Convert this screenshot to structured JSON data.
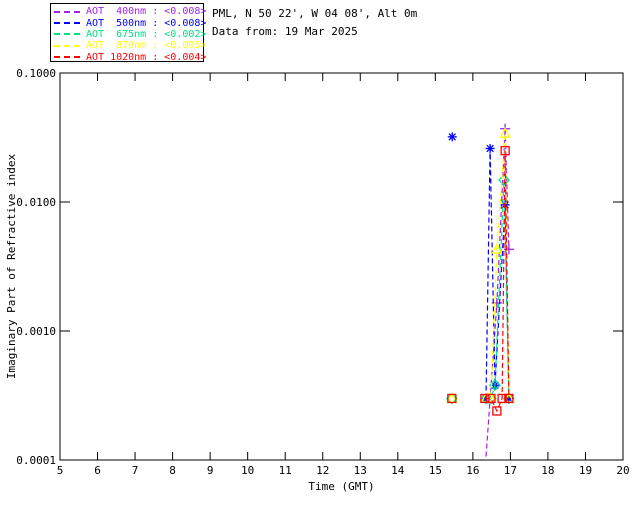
{
  "header": {
    "line1": "PML, N 50 22', W 04 08', Alt 0m",
    "line2": "Data from: 19 Mar 2025"
  },
  "legend": {
    "items": [
      {
        "label": "AOT  400nm : <0.008>",
        "color": "#A020F0"
      },
      {
        "label": "AOT  500nm : <0.008>",
        "color": "#0000FF"
      },
      {
        "label": "AOT  675nm : <0.002>",
        "color": "#00E080"
      },
      {
        "label": "AOT  870nm : <0.005>",
        "color": "#FFFF00"
      },
      {
        "label": "AOT 1020nm : <0.004>",
        "color": "#FF0000"
      }
    ]
  },
  "chart_data": {
    "type": "line",
    "title": "",
    "xlabel": "Time (GMT)",
    "ylabel": "Imaginary Part of Refractive index",
    "xlim": [
      5,
      20
    ],
    "ylim": [
      0.0001,
      0.1
    ],
    "yscale": "log",
    "grid": false,
    "xticks": {
      "values": [
        5,
        6,
        7,
        8,
        9,
        10,
        11,
        12,
        13,
        14,
        15,
        16,
        17,
        18,
        19,
        20
      ],
      "labels": [
        "5",
        "6",
        "7",
        "8",
        "9",
        "10",
        "11",
        "12",
        "13",
        "14",
        "15",
        "16",
        "17",
        "18",
        "19",
        "20"
      ]
    },
    "yticks": {
      "values": [
        0.1,
        0.01,
        0.001,
        0.0001
      ],
      "labels": [
        "0.1000",
        "0.0100",
        "0.0010",
        "0.0001"
      ]
    },
    "series": [
      {
        "name": "AOT 400nm",
        "color": "#A020F0",
        "marker": "plus",
        "line": [
          [
            16.32,
            8e-05
          ],
          [
            16.64,
            0.00165
          ],
          [
            16.86,
            0.037
          ],
          [
            16.96,
            0.0043
          ]
        ],
        "markers": [
          [
            16.64,
            0.00165
          ],
          [
            16.86,
            0.037
          ],
          [
            16.96,
            0.0043
          ]
        ]
      },
      {
        "name": "AOT 500nm",
        "color": "#0000FF",
        "marker": "asterisk",
        "line": [
          [
            16.35,
            0.0003
          ],
          [
            16.46,
            0.026
          ],
          [
            16.59,
            0.00038
          ],
          [
            16.86,
            0.0095
          ],
          [
            16.96,
            0.0003
          ]
        ],
        "markers": [
          [
            15.45,
            0.032
          ],
          [
            16.35,
            0.0003
          ],
          [
            16.46,
            0.026
          ],
          [
            16.59,
            0.00038
          ],
          [
            16.86,
            0.0095
          ],
          [
            16.96,
            0.0003
          ]
        ]
      },
      {
        "name": "AOT 675nm",
        "color": "#00E080",
        "marker": "diamond",
        "line": [
          [
            16.35,
            0.0003
          ],
          [
            16.48,
            0.0003
          ],
          [
            16.59,
            0.00038
          ],
          [
            16.83,
            0.0148
          ],
          [
            16.96,
            0.0003
          ]
        ],
        "markers": [
          [
            15.44,
            0.0003
          ],
          [
            16.35,
            0.0003
          ],
          [
            16.48,
            0.0003
          ],
          [
            16.59,
            0.00038
          ],
          [
            16.83,
            0.0148
          ],
          [
            16.96,
            0.0003
          ]
        ]
      },
      {
        "name": "AOT 870nm",
        "color": "#FFFF00",
        "marker": "triangle",
        "line": [
          [
            16.35,
            0.0003
          ],
          [
            16.48,
            0.0003
          ],
          [
            16.64,
            0.0043
          ],
          [
            16.86,
            0.034
          ],
          [
            16.96,
            0.0003
          ]
        ],
        "markers": [
          [
            15.44,
            0.0003
          ],
          [
            16.35,
            0.0003
          ],
          [
            16.48,
            0.0003
          ],
          [
            16.64,
            0.0043
          ],
          [
            16.86,
            0.034
          ],
          [
            16.96,
            0.0003
          ]
        ]
      },
      {
        "name": "AOT 1020nm",
        "color": "#FF0000",
        "marker": "square",
        "line": [
          [
            16.32,
            0.0003
          ],
          [
            16.48,
            0.0003
          ],
          [
            16.64,
            0.00024
          ],
          [
            16.78,
            0.0003
          ],
          [
            16.86,
            0.025
          ],
          [
            16.96,
            0.0003
          ]
        ],
        "markers": [
          [
            15.44,
            0.0003
          ],
          [
            16.32,
            0.0003
          ],
          [
            16.48,
            0.0003
          ],
          [
            16.64,
            0.00024
          ],
          [
            16.78,
            0.0003
          ],
          [
            16.86,
            0.025
          ],
          [
            16.96,
            0.0003
          ]
        ]
      }
    ]
  }
}
